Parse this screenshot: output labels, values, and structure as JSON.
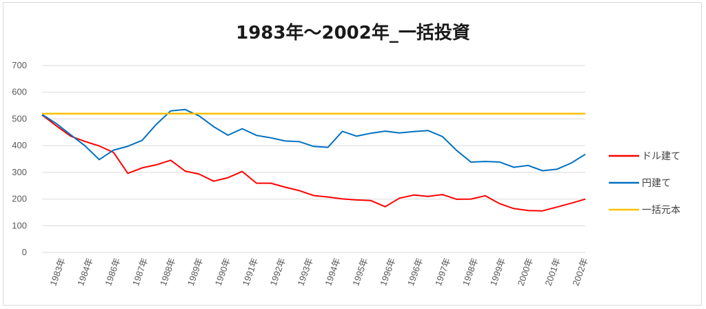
{
  "chart_data": {
    "type": "line",
    "title": "1983年～2002年_一括投資",
    "xlabel": "",
    "ylabel": "",
    "ylim": [
      0,
      700
    ],
    "yticks": [
      0,
      100,
      200,
      300,
      400,
      500,
      600,
      700
    ],
    "x_tick_labels": [
      "1983年",
      "1984年",
      "1986年",
      "1987年",
      "1988年",
      "1989年",
      "1990年",
      "1991年",
      "1992年",
      "1993年",
      "1994年",
      "1995年",
      "1996年",
      "1996年",
      "1997年",
      "1998年",
      "1999年",
      "2000年",
      "2001年",
      "2002年"
    ],
    "grid": true,
    "legend_position": "right",
    "x": [
      0,
      0.5,
      1,
      1.5,
      2,
      2.5,
      3,
      3.5,
      4,
      4.5,
      5,
      5.5,
      6,
      6.5,
      7,
      7.5,
      8,
      8.5,
      9,
      9.5,
      10,
      10.5,
      11,
      11.5,
      12,
      12.5,
      13,
      13.5,
      14,
      14.5,
      15,
      15.5,
      16,
      16.5,
      17,
      17.5,
      18,
      18.5,
      19
    ],
    "series": [
      {
        "name": "ドル建て",
        "color": "#ff0000",
        "values": [
          520,
          470,
          440,
          415,
          400,
          375,
          295,
          320,
          330,
          345,
          300,
          290,
          270,
          275,
          300,
          260,
          255,
          245,
          230,
          215,
          205,
          200,
          195,
          195,
          175,
          205,
          215,
          215,
          220,
          200,
          195,
          210,
          185,
          165,
          160,
          155,
          165,
          180,
          200
        ]
      },
      {
        "name": "円建て",
        "color": "#0070c0",
        "values": [
          520,
          480,
          440,
          400,
          350,
          380,
          395,
          420,
          480,
          530,
          540,
          510,
          470,
          440,
          460,
          440,
          430,
          420,
          410,
          395,
          390,
          450,
          440,
          445,
          450,
          450,
          450,
          460,
          430,
          385,
          340,
          340,
          340,
          320,
          325,
          310,
          310,
          330,
          370
        ]
      },
      {
        "name": "一括元本",
        "color": "#ffc000",
        "values": [
          520,
          520,
          520,
          520,
          520,
          520,
          520,
          520,
          520,
          520,
          520,
          520,
          520,
          520,
          520,
          520,
          520,
          520,
          520,
          520,
          520,
          520,
          520,
          520,
          520,
          520,
          520,
          520,
          520,
          520,
          520,
          520,
          520,
          520,
          520,
          520,
          520,
          520,
          520
        ]
      }
    ]
  }
}
